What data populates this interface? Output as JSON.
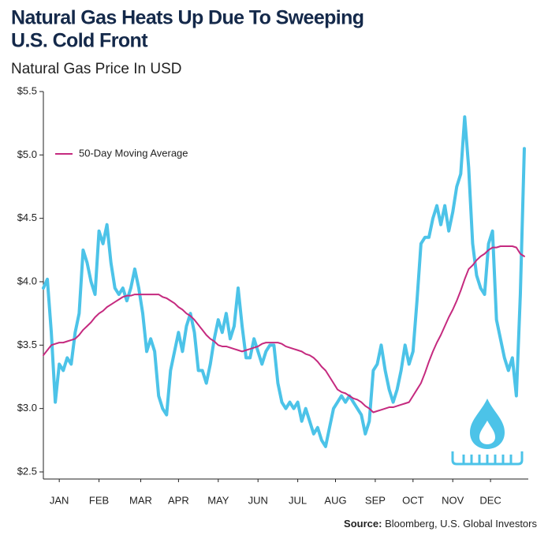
{
  "chart_data": {
    "type": "line",
    "title": [
      "Natural Gas Heats Up Due To Sweeping",
      "U.S. Cold Front"
    ],
    "subtitle": "Natural Gas Price In USD",
    "source_label": "Source:",
    "source": "Bloomberg, U.S. Global Investors",
    "x": [
      0,
      0.1,
      0.2,
      0.3,
      0.4,
      0.5,
      0.6,
      0.7,
      0.8,
      0.9,
      1,
      1.1,
      1.2,
      1.3,
      1.4,
      1.5,
      1.6,
      1.7,
      1.8,
      1.9,
      2,
      2.1,
      2.2,
      2.3,
      2.4,
      2.5,
      2.6,
      2.7,
      2.8,
      2.9,
      3,
      3.1,
      3.2,
      3.3,
      3.4,
      3.5,
      3.6,
      3.7,
      3.8,
      3.9,
      4,
      4.1,
      4.2,
      4.3,
      4.4,
      4.5,
      4.6,
      4.7,
      4.8,
      4.9,
      5,
      5.1,
      5.2,
      5.3,
      5.4,
      5.5,
      5.6,
      5.7,
      5.8,
      5.9,
      6,
      6.1,
      6.2,
      6.3,
      6.4,
      6.5,
      6.6,
      6.7,
      6.8,
      6.9,
      7,
      7.1,
      7.2,
      7.3,
      7.4,
      7.5,
      7.6,
      7.7,
      7.8,
      7.9,
      8,
      8.1,
      8.2,
      8.3,
      8.4,
      8.5,
      8.6,
      8.7,
      8.8,
      8.9,
      9,
      9.1,
      9.2,
      9.3,
      9.4,
      9.5,
      9.6,
      9.7,
      9.8,
      9.9,
      10,
      10.1,
      10.2,
      10.3,
      10.4,
      10.5,
      10.6,
      10.7,
      10.8,
      10.9,
      11,
      11.1,
      11.2,
      11.3,
      11.4,
      11.5,
      11.6,
      11.7,
      11.8,
      11.9,
      12,
      12.1
    ],
    "xlim": [
      0,
      12.2
    ],
    "xticks": [
      {
        "value": 0.4,
        "label": "JAN"
      },
      {
        "value": 1.4,
        "label": "FEB"
      },
      {
        "value": 2.45,
        "label": "MAR"
      },
      {
        "value": 3.4,
        "label": "APR"
      },
      {
        "value": 4.4,
        "label": "MAY"
      },
      {
        "value": 5.4,
        "label": "JUN"
      },
      {
        "value": 6.4,
        "label": "JUL"
      },
      {
        "value": 7.35,
        "label": "AUG"
      },
      {
        "value": 8.35,
        "label": "SEP"
      },
      {
        "value": 9.3,
        "label": "OCT"
      },
      {
        "value": 10.3,
        "label": "NOV"
      },
      {
        "value": 11.25,
        "label": "DEC"
      }
    ],
    "ylim": [
      2.5,
      5.5
    ],
    "yticks": [
      {
        "value": 2.5,
        "label": "$2.5"
      },
      {
        "value": 3,
        "label": "$3.0"
      },
      {
        "value": 3.5,
        "label": "$3.5"
      },
      {
        "value": 4,
        "label": "$4.0"
      },
      {
        "value": 4.5,
        "label": "$4.5"
      },
      {
        "value": 5,
        "label": "$5.0"
      },
      {
        "value": 5.5,
        "label": "$5.5"
      }
    ],
    "legend": "upper-left",
    "series": [
      {
        "color": "#4cc3e8",
        "width": 4,
        "values": [
          3.95,
          4.02,
          3.6,
          3.05,
          3.35,
          3.3,
          3.4,
          3.35,
          3.6,
          3.75,
          4.25,
          4.15,
          4.0,
          3.9,
          4.4,
          4.3,
          4.45,
          4.15,
          3.95,
          3.9,
          3.95,
          3.85,
          3.95,
          4.1,
          3.95,
          3.75,
          3.45,
          3.55,
          3.45,
          3.1,
          3.0,
          2.95,
          3.3,
          3.45,
          3.6,
          3.45,
          3.65,
          3.75,
          3.6,
          3.3,
          3.3,
          3.2,
          3.35,
          3.55,
          3.7,
          3.6,
          3.75,
          3.55,
          3.65,
          3.95,
          3.65,
          3.4,
          3.4,
          3.55,
          3.45,
          3.35,
          3.45,
          3.5,
          3.5,
          3.2,
          3.05,
          3.0,
          3.05,
          3.0,
          3.05,
          2.9,
          3.0,
          2.9,
          2.8,
          2.85,
          2.75,
          2.7,
          2.85,
          3.0,
          3.05,
          3.1,
          3.05,
          3.1,
          3.05,
          3.0,
          2.95,
          2.8,
          2.9,
          3.3,
          3.35,
          3.5,
          3.3,
          3.15,
          3.05,
          3.15,
          3.3,
          3.5,
          3.35,
          3.45,
          3.85,
          4.3,
          4.35,
          4.35,
          4.5,
          4.6,
          4.45,
          4.6,
          4.4,
          4.55,
          4.75,
          4.85,
          5.3,
          4.9,
          4.3,
          4.05,
          3.95,
          3.9,
          4.3,
          4.4,
          3.7,
          3.55,
          3.4,
          3.3,
          3.4,
          3.1,
          3.9,
          5.05
        ]
      },
      {
        "name": "50-Day Moving Average",
        "color": "#c52a7f",
        "width": 2,
        "values": [
          3.42,
          3.46,
          3.5,
          3.51,
          3.52,
          3.52,
          3.53,
          3.54,
          3.55,
          3.58,
          3.62,
          3.65,
          3.68,
          3.72,
          3.75,
          3.77,
          3.8,
          3.82,
          3.84,
          3.86,
          3.88,
          3.89,
          3.89,
          3.9,
          3.9,
          3.9,
          3.9,
          3.9,
          3.9,
          3.9,
          3.88,
          3.87,
          3.85,
          3.83,
          3.8,
          3.78,
          3.75,
          3.73,
          3.7,
          3.66,
          3.62,
          3.58,
          3.55,
          3.53,
          3.5,
          3.49,
          3.49,
          3.48,
          3.47,
          3.46,
          3.45,
          3.46,
          3.47,
          3.48,
          3.49,
          3.51,
          3.52,
          3.52,
          3.52,
          3.52,
          3.51,
          3.49,
          3.48,
          3.47,
          3.46,
          3.45,
          3.43,
          3.42,
          3.4,
          3.37,
          3.33,
          3.3,
          3.25,
          3.2,
          3.15,
          3.13,
          3.12,
          3.1,
          3.08,
          3.07,
          3.05,
          3.02,
          3.0,
          2.97,
          2.98,
          2.99,
          3.0,
          3.01,
          3.01,
          3.02,
          3.03,
          3.04,
          3.05,
          3.1,
          3.15,
          3.2,
          3.28,
          3.37,
          3.45,
          3.52,
          3.58,
          3.65,
          3.72,
          3.78,
          3.85,
          3.93,
          4.02,
          4.1,
          4.13,
          4.17,
          4.2,
          4.22,
          4.25,
          4.27,
          4.27,
          4.28,
          4.28,
          4.28,
          4.28,
          4.27,
          4.22,
          4.2
        ]
      }
    ]
  }
}
